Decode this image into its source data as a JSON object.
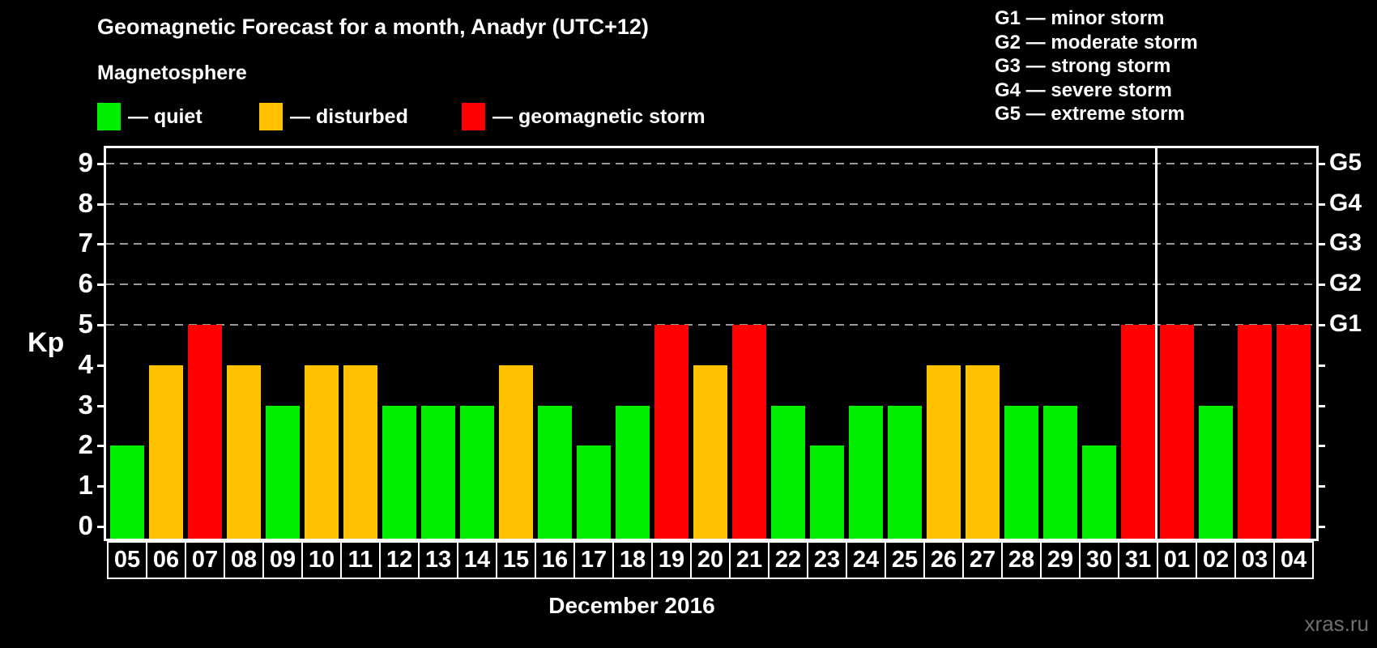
{
  "header": {
    "title": "Geomagnetic Forecast for a month, Anadyr (UTC+12)",
    "subtitle": "Magnetosphere"
  },
  "legend": {
    "items": [
      {
        "key": "quiet",
        "label": "— quiet",
        "color": "#00ee00"
      },
      {
        "key": "disturbed",
        "label": "— disturbed",
        "color": "#ffc200"
      },
      {
        "key": "storm",
        "label": "— geomagnetic storm",
        "color": "#ff0000"
      }
    ]
  },
  "g_legend": {
    "items": [
      "G1 — minor storm",
      "G2 — moderate storm",
      "G3 — strong storm",
      "G4 — severe storm",
      "G5 — extreme storm"
    ]
  },
  "axis": {
    "kp_label": "Kp",
    "left_ticks": [
      0,
      1,
      2,
      3,
      4,
      5,
      6,
      7,
      8,
      9
    ],
    "right_ticks": [
      0,
      1,
      2,
      3,
      4,
      5,
      6,
      7,
      8,
      9
    ],
    "right_labels": [
      {
        "text": "G1",
        "value": 5
      },
      {
        "text": "G2",
        "value": 6
      },
      {
        "text": "G3",
        "value": 7
      },
      {
        "text": "G4",
        "value": 8
      },
      {
        "text": "G5",
        "value": 9
      }
    ],
    "grid_values": [
      5,
      6,
      7,
      8,
      9
    ]
  },
  "x_axis": {
    "month_label": "December 2016"
  },
  "watermark": "xras.ru",
  "colors": {
    "quiet": "#00ee00",
    "disturbed": "#ffc200",
    "storm": "#ff0000",
    "grid": "#999999",
    "axis": "#ffffff",
    "background": "#000000"
  },
  "chart_data": {
    "type": "bar",
    "title": "Geomagnetic Forecast for a month, Anadyr (UTC+12)",
    "xlabel": "December 2016",
    "ylabel": "Kp",
    "ylim": [
      0,
      9
    ],
    "grid": "dashed horizontal at Kp 5-9",
    "legend_position": "top-left and top-right",
    "categories": [
      "05",
      "06",
      "07",
      "08",
      "09",
      "10",
      "11",
      "12",
      "13",
      "14",
      "15",
      "16",
      "17",
      "18",
      "19",
      "20",
      "21",
      "22",
      "23",
      "24",
      "25",
      "26",
      "27",
      "28",
      "29",
      "30",
      "31",
      "01",
      "02",
      "03",
      "04"
    ],
    "values": [
      2,
      4,
      5,
      4,
      3,
      4,
      4,
      3,
      3,
      3,
      4,
      3,
      2,
      3,
      5,
      4,
      5,
      3,
      2,
      3,
      3,
      4,
      4,
      3,
      3,
      2,
      5,
      5,
      3,
      5,
      5
    ],
    "statuses": [
      "quiet",
      "disturbed",
      "storm",
      "disturbed",
      "quiet",
      "disturbed",
      "disturbed",
      "quiet",
      "quiet",
      "quiet",
      "disturbed",
      "quiet",
      "quiet",
      "quiet",
      "storm",
      "disturbed",
      "storm",
      "quiet",
      "quiet",
      "quiet",
      "quiet",
      "disturbed",
      "disturbed",
      "quiet",
      "quiet",
      "quiet",
      "storm",
      "storm",
      "quiet",
      "storm",
      "storm"
    ],
    "month_boundary_after_index": 26
  }
}
